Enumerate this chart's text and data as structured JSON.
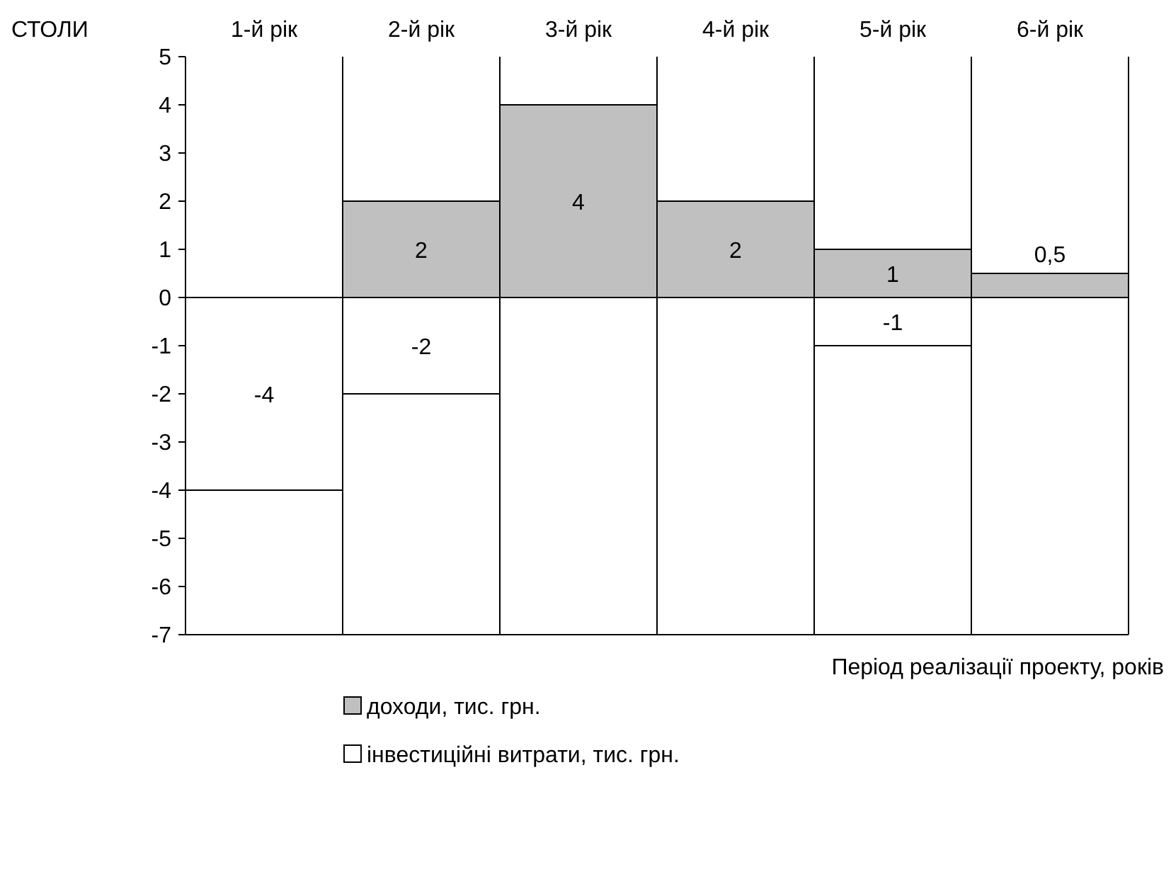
{
  "chart_data": {
    "type": "bar",
    "title": "СТОЛИ",
    "xlabel": "Період реалізації проекту, років",
    "categories": [
      "1-й рік",
      "2-й рік",
      "3-й рік",
      "4-й рік",
      "5-й рік",
      "6-й рік"
    ],
    "grid": "x",
    "legend": "bottom",
    "ylim": [
      -7,
      5
    ],
    "yticks": [
      -7,
      -6,
      -5,
      -4,
      -3,
      -2,
      -1,
      0,
      1,
      2,
      3,
      4,
      5
    ],
    "series": [
      {
        "name": "доходи, тис. грн.",
        "color": "#c0c0c0",
        "values": [
          null,
          2,
          4,
          2,
          1,
          0.5
        ],
        "value_labels": [
          null,
          "2",
          "4",
          "2",
          "1",
          "0,5"
        ]
      },
      {
        "name": "інвестиційні витрати, тис. грн.",
        "color": "#ffffff",
        "values": [
          -4,
          -2,
          null,
          null,
          -1,
          null
        ],
        "value_labels": [
          "-4",
          "-2",
          null,
          null,
          "-1",
          null
        ]
      }
    ]
  }
}
